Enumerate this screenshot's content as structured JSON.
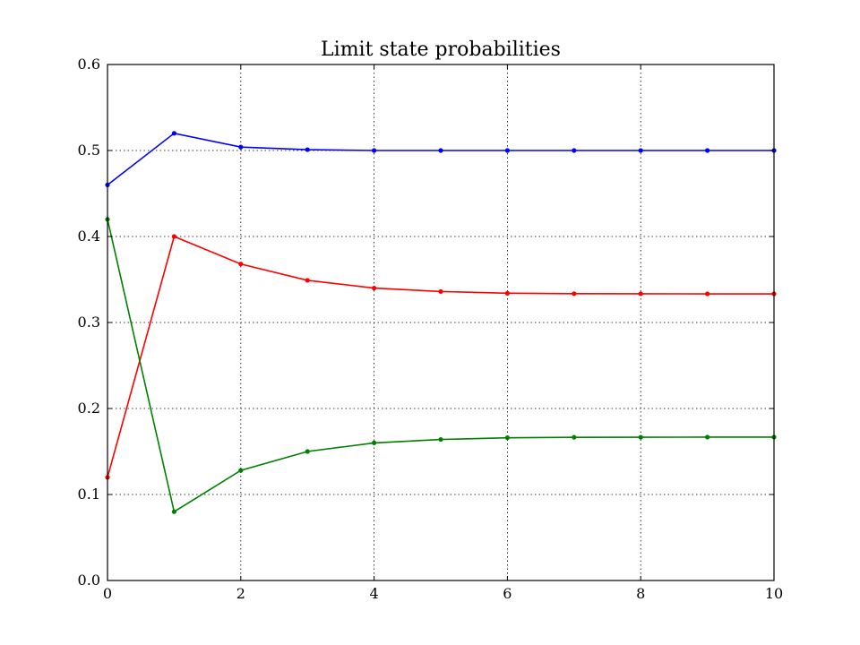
{
  "chart_data": {
    "type": "line",
    "title": "Limit state probabilities",
    "xlabel": "",
    "ylabel": "",
    "xlim": [
      0,
      10
    ],
    "ylim": [
      0,
      0.6
    ],
    "grid": true,
    "x": [
      0,
      1,
      2,
      3,
      4,
      5,
      6,
      7,
      8,
      9,
      10
    ],
    "x_ticks": [
      "0",
      "2",
      "4",
      "6",
      "8",
      "10"
    ],
    "x_tick_values": [
      0,
      2,
      4,
      6,
      8,
      10
    ],
    "y_ticks": [
      "0.0",
      "0.1",
      "0.2",
      "0.3",
      "0.4",
      "0.5",
      "0.6"
    ],
    "y_tick_values": [
      0,
      0.1,
      0.2,
      0.3,
      0.4,
      0.5,
      0.6
    ],
    "series": [
      {
        "color": "#0000ff",
        "values": [
          0.46,
          0.52,
          0.504,
          0.501,
          0.5,
          0.5,
          0.5,
          0.5,
          0.5,
          0.5,
          0.5
        ]
      },
      {
        "color": "#ff0000",
        "values": [
          0.12,
          0.4,
          0.368,
          0.349,
          0.34,
          0.336,
          0.334,
          0.3335,
          0.3334,
          0.3333,
          0.3333
        ]
      },
      {
        "color": "#008000",
        "values": [
          0.42,
          0.08,
          0.128,
          0.15,
          0.16,
          0.164,
          0.166,
          0.1665,
          0.1666,
          0.1667,
          0.1667
        ]
      }
    ]
  }
}
